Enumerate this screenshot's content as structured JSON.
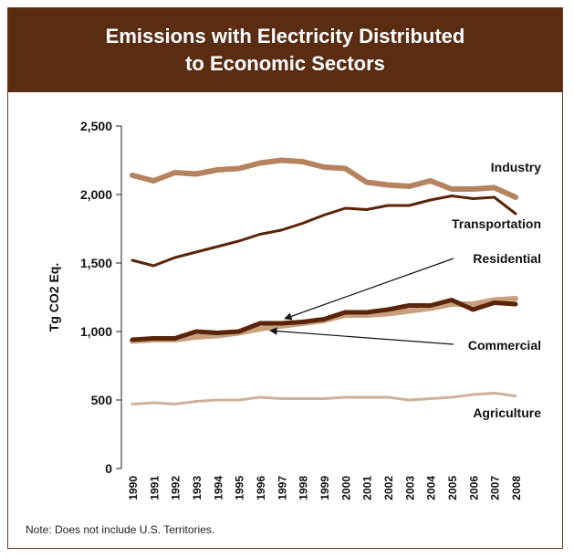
{
  "chart_data": {
    "type": "line",
    "title_lines": [
      "Emissions with Electricity Distributed",
      "to Economic Sectors"
    ],
    "ylabel": "Tg CO2 Eq.",
    "ylim": [
      0,
      2500
    ],
    "yticks": [
      "0",
      "500",
      "1,000",
      "1,500",
      "2,000",
      "2,500"
    ],
    "ytick_values": [
      0,
      500,
      1000,
      1500,
      2000,
      2500
    ],
    "x": [
      "1990",
      "1991",
      "1992",
      "1993",
      "1994",
      "1995",
      "1996",
      "1997",
      "1998",
      "1999",
      "2000",
      "2001",
      "2002",
      "2003",
      "2004",
      "2005",
      "2006",
      "2007",
      "2008"
    ],
    "series": [
      {
        "name": "Industry",
        "color": "#b5835e",
        "values": [
          2140,
          2100,
          2160,
          2150,
          2180,
          2190,
          2230,
          2250,
          2240,
          2200,
          2190,
          2090,
          2070,
          2060,
          2100,
          2040,
          2040,
          2050,
          1980
        ]
      },
      {
        "name": "Transportation",
        "color": "#5a2409",
        "values": [
          1520,
          1480,
          1540,
          1580,
          1620,
          1660,
          1710,
          1740,
          1790,
          1850,
          1900,
          1890,
          1920,
          1920,
          1960,
          1990,
          1970,
          1980,
          1860
        ]
      },
      {
        "name": "Commercial",
        "color": "#c9a07e",
        "values": [
          930,
          940,
          940,
          960,
          970,
          990,
          1020,
          1040,
          1060,
          1080,
          1120,
          1120,
          1130,
          1150,
          1170,
          1200,
          1200,
          1230,
          1240
        ]
      },
      {
        "name": "Residential",
        "color": "#5a2409",
        "values": [
          940,
          950,
          950,
          1000,
          990,
          1000,
          1060,
          1060,
          1070,
          1090,
          1140,
          1140,
          1160,
          1190,
          1190,
          1230,
          1160,
          1210,
          1200
        ]
      },
      {
        "name": "Agriculture",
        "color": "#cdb29a",
        "values": [
          470,
          480,
          470,
          490,
          500,
          500,
          520,
          510,
          510,
          510,
          520,
          520,
          520,
          500,
          510,
          520,
          540,
          550,
          530
        ]
      }
    ],
    "legend_placement": "inline labels at right of lines",
    "grid": false
  },
  "note": "Note: Does not include U.S. Territories."
}
